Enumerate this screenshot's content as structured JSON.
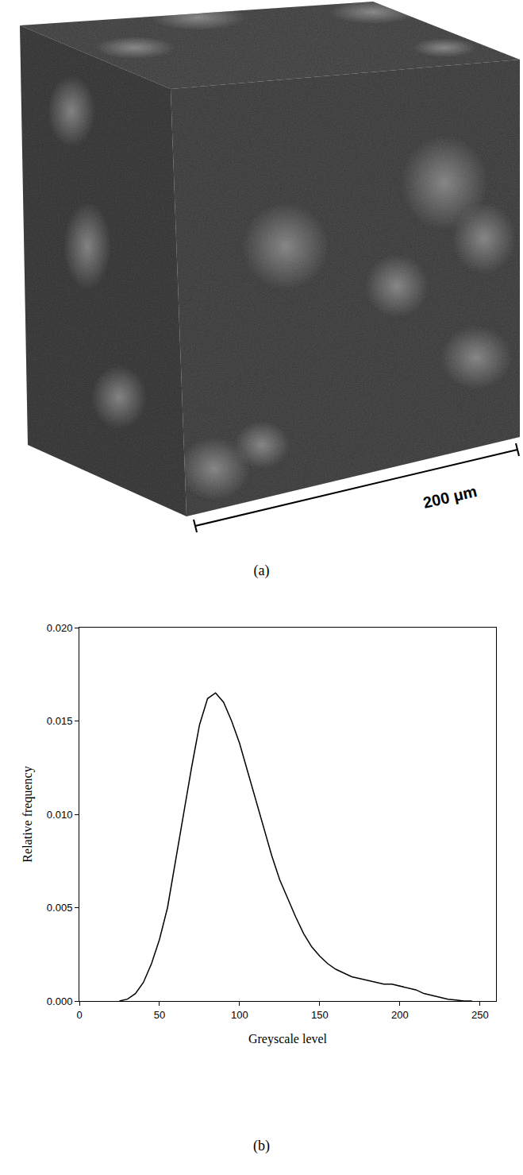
{
  "image": {
    "scale_bar": "200 μm",
    "caption": "(a)"
  },
  "chart_data": {
    "type": "line",
    "caption": "(b)",
    "x_label": "Greyscale level",
    "y_label": "Relative frequency",
    "color": "#000000",
    "grid": false,
    "xlim": [
      0,
      260
    ],
    "xticks": [
      0,
      50,
      100,
      150,
      200,
      250
    ],
    "ylim": [
      0,
      0.02
    ],
    "yticks": [
      {
        "value": 0,
        "label": "0.000"
      },
      {
        "value": 0.005,
        "label": "0.005"
      },
      {
        "value": 0.01,
        "label": "0.010"
      },
      {
        "value": 0.015,
        "label": "0.015"
      },
      {
        "value": 0.02,
        "label": "0.020"
      }
    ],
    "x": [
      25,
      30,
      35,
      40,
      45,
      50,
      55,
      60,
      65,
      70,
      75,
      80,
      85,
      90,
      95,
      100,
      105,
      110,
      115,
      120,
      125,
      130,
      135,
      140,
      145,
      150,
      155,
      160,
      165,
      170,
      175,
      180,
      185,
      190,
      195,
      200,
      205,
      210,
      215,
      220,
      225,
      230,
      235,
      240,
      245
    ],
    "values": [
      0,
      0.0001,
      0.0004,
      0.001,
      0.002,
      0.0033,
      0.005,
      0.0075,
      0.01,
      0.0125,
      0.0148,
      0.0162,
      0.0165,
      0.016,
      0.015,
      0.0138,
      0.0123,
      0.0108,
      0.0092,
      0.0078,
      0.0065,
      0.0055,
      0.0045,
      0.0036,
      0.0029,
      0.0024,
      0.002,
      0.0017,
      0.0015,
      0.0013,
      0.0012,
      0.0011,
      0.001,
      0.0009,
      0.0009,
      0.0008,
      0.0007,
      0.0006,
      0.0004,
      0.0003,
      0.0002,
      0.0001,
      5e-05,
      0,
      0
    ]
  }
}
